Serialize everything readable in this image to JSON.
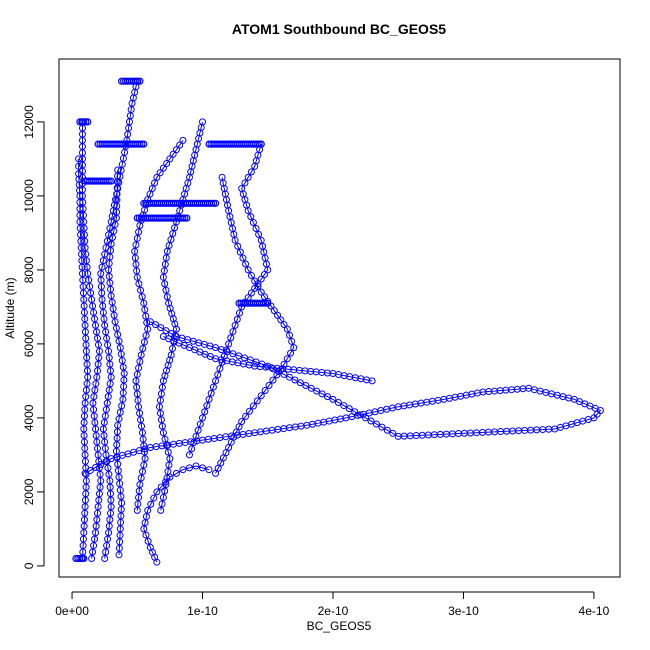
{
  "chart_data": {
    "type": "scatter",
    "title": "ATOM1 Southbound BC_GEOS5",
    "xlabel": "BC_GEOS5",
    "ylabel": "Altitude (m)",
    "xlim": [
      -1e-11,
      4.2e-10
    ],
    "ylim": [
      -300,
      13700
    ],
    "x_ticks": [
      {
        "value": 0,
        "label": "0e+00"
      },
      {
        "value": 1e-10,
        "label": "1e-10"
      },
      {
        "value": 2e-10,
        "label": "2e-10"
      },
      {
        "value": 3e-10,
        "label": "3e-10"
      },
      {
        "value": 4e-10,
        "label": "4e-10"
      }
    ],
    "y_ticks": [
      {
        "value": 0,
        "label": "0"
      },
      {
        "value": 2000,
        "label": "2000"
      },
      {
        "value": 4000,
        "label": "4000"
      },
      {
        "value": 6000,
        "label": "6000"
      },
      {
        "value": 8000,
        "label": "8000"
      },
      {
        "value": 10000,
        "label": "10000"
      },
      {
        "value": 12000,
        "label": "12000"
      }
    ],
    "marker": "open-circle",
    "color": "#0000ff",
    "grid": false,
    "legend": "none",
    "series": [
      {
        "x": [
          8e-12,
          9e-12,
          1e-11,
          1.1e-11,
          1e-11,
          9e-12,
          1e-11,
          1.2e-11,
          1.1e-11,
          1e-11,
          9e-12,
          8e-12,
          7e-12,
          6e-12,
          6e-12,
          5e-12,
          5e-12
        ],
        "y": [
          200,
          900,
          1600,
          2300,
          3000,
          3700,
          4400,
          5100,
          5800,
          6500,
          7200,
          7900,
          8600,
          9300,
          10000,
          10600,
          11000
        ]
      },
      {
        "x": [
          1.5e-11,
          1.8e-11,
          2e-11,
          2.2e-11,
          2e-11,
          1.8e-11,
          1.6e-11,
          1.9e-11,
          2.1e-11,
          1.8e-11,
          1.5e-11,
          1.2e-11,
          1e-11,
          9e-12,
          8e-12,
          8e-12
        ],
        "y": [
          200,
          900,
          1600,
          2300,
          3000,
          3700,
          4400,
          5100,
          5800,
          6500,
          7200,
          7900,
          8600,
          9300,
          10000,
          12000
        ]
      },
      {
        "x": [
          2.5e-11,
          2.8e-11,
          3e-11,
          2.9e-11,
          2.6e-11,
          2.4e-11,
          2.7e-11,
          3e-11,
          2.8e-11,
          2.5e-11,
          2.3e-11,
          2.2e-11,
          2.6e-11,
          3e-11,
          3.5e-11,
          4.2e-11,
          4.6e-11,
          5e-11
        ],
        "y": [
          200,
          900,
          1600,
          2300,
          3000,
          3700,
          4400,
          5100,
          5800,
          6500,
          7200,
          7900,
          8600,
          9300,
          10200,
          11500,
          12500,
          13100
        ]
      },
      {
        "x": [
          3.6e-11,
          3.7e-11,
          3.8e-11,
          3.6e-11,
          3.4e-11,
          3.5e-11,
          3.9e-11,
          4e-11,
          3.7e-11,
          3.3e-11,
          3e-11,
          2.8e-11,
          3e-11,
          3.4e-11,
          3.5e-11
        ],
        "y": [
          300,
          1000,
          1700,
          2400,
          3100,
          3800,
          4500,
          5200,
          5900,
          6600,
          7300,
          8000,
          8700,
          9400,
          10700
        ]
      },
      {
        "x": [
          5e-11,
          5.2e-11,
          5.6e-11,
          5.4e-11,
          5.1e-11,
          4.9e-11,
          5.3e-11,
          5.8e-11,
          5.5e-11,
          5e-11,
          4.8e-11,
          5.2e-11,
          5.8e-11,
          6.5e-11,
          7.5e-11,
          8.5e-11
        ],
        "y": [
          1500,
          2200,
          2900,
          3600,
          4300,
          5000,
          5700,
          6400,
          7100,
          7800,
          8500,
          9200,
          9900,
          10500,
          11000,
          11500
        ]
      },
      {
        "x": [
          6.8e-11,
          7.2e-11,
          7.5e-11,
          7e-11,
          6.7e-11,
          7e-11,
          7.6e-11,
          8e-11,
          7.4e-11,
          7e-11,
          7.3e-11,
          8e-11,
          9e-11,
          1e-10
        ],
        "y": [
          1500,
          2200,
          2900,
          3600,
          4300,
          5000,
          5700,
          6400,
          7100,
          7800,
          8500,
          9300,
          10500,
          12000
        ]
      },
      {
        "x": [
          9e-11,
          9.5e-11,
          1e-10,
          1.05e-10,
          1.1e-10,
          1.15e-10,
          1.2e-10,
          1.25e-10,
          1.3e-10,
          1.4e-10,
          1.5e-10,
          1.45e-10,
          1.35e-10,
          1.3e-10,
          1.4e-10,
          1.45e-10
        ],
        "y": [
          3000,
          3500,
          4000,
          4500,
          5000,
          5500,
          6000,
          6500,
          7000,
          7500,
          8000,
          8800,
          9600,
          10200,
          10800,
          11400
        ]
      },
      {
        "x": [
          1.1e-10,
          1.2e-10,
          1.3e-10,
          1.45e-10,
          1.6e-10,
          1.7e-10,
          1.65e-10,
          1.55e-10,
          1.45e-10,
          1.35e-10,
          1.25e-10,
          1.2e-10,
          1.15e-10
        ],
        "y": [
          2500,
          3200,
          3900,
          4600,
          5300,
          5900,
          6400,
          6900,
          7400,
          8000,
          8800,
          9600,
          10500
        ]
      },
      {
        "x": [
          1e-11,
          3e-11,
          6e-11,
          1e-10,
          1.4e-10,
          1.8e-10,
          2.1e-10,
          2.5e-10,
          2.85e-10,
          3.15e-10,
          3.5e-10,
          3.85e-10,
          4.05e-10,
          4e-10,
          3.7e-10,
          3.1e-10,
          2.5e-10,
          2e-10,
          1.5e-10,
          1.1e-10,
          8e-11,
          6e-11
        ],
        "y": [
          2500,
          2900,
          3200,
          3400,
          3600,
          3800,
          4000,
          4300,
          4500,
          4700,
          4800,
          4500,
          4200,
          4000,
          3700,
          3600,
          3500,
          4500,
          5400,
          5900,
          6200,
          6600
        ]
      },
      {
        "x": [
          7e-11,
          9e-11,
          1.1e-10,
          1.4e-10,
          1.7e-10,
          2e-10,
          2.3e-10
        ],
        "y": [
          6200,
          5900,
          5600,
          5400,
          5300,
          5200,
          5000
        ]
      },
      {
        "x": [
          6.5e-11,
          6e-11,
          5.5e-11,
          5.8e-11,
          6.5e-11,
          7.5e-11,
          8.5e-11,
          9.5e-11,
          1.05e-10
        ],
        "y": [
          100,
          500,
          1000,
          1500,
          2000,
          2400,
          2600,
          2700,
          2600
        ]
      }
    ],
    "bands": [
      {
        "x": [
          6e-12,
          1.2e-11
        ],
        "y": 12000
      },
      {
        "x": [
          2e-11,
          5.5e-11
        ],
        "y": 11400
      },
      {
        "x": [
          1e-11,
          3e-11
        ],
        "y": 10400
      },
      {
        "x": [
          5.5e-11,
          1.1e-10
        ],
        "y": 9800
      },
      {
        "x": [
          5e-11,
          8.8e-11
        ],
        "y": 9400
      },
      {
        "x": [
          1.05e-10,
          1.45e-10
        ],
        "y": 11400
      },
      {
        "x": [
          1.28e-10,
          1.5e-10
        ],
        "y": 7100
      },
      {
        "x": [
          3.8e-11,
          5.2e-11
        ],
        "y": 13100
      },
      {
        "x": [
          3e-12,
          9e-12
        ],
        "y": 200
      }
    ]
  }
}
